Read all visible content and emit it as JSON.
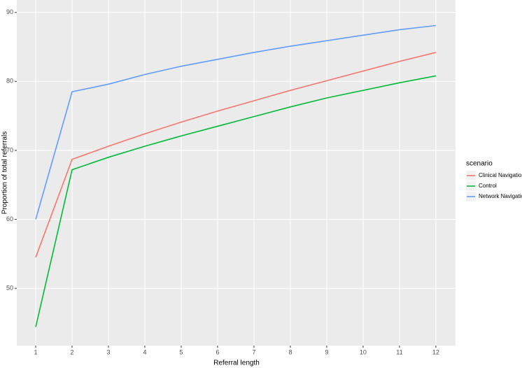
{
  "chart_data": {
    "type": "line",
    "x_label": "Referral length",
    "y_label": "Proportion of total referrals",
    "legend_title": "scenario",
    "x": [
      1,
      2,
      3,
      4,
      5,
      6,
      7,
      8,
      9,
      10,
      11,
      12
    ],
    "series": [
      {
        "name": "Clinical Navigation",
        "color": "#F8766D",
        "values": [
          54.5,
          68.7,
          70.6,
          72.4,
          74.1,
          75.7,
          77.2,
          78.7,
          80.1,
          81.5,
          82.9,
          84.2
        ]
      },
      {
        "name": "Control",
        "color": "#00BA38",
        "values": [
          44.4,
          67.2,
          69.0,
          70.6,
          72.1,
          73.5,
          74.9,
          76.3,
          77.6,
          78.7,
          79.8,
          80.8
        ]
      },
      {
        "name": "Network Navigation",
        "color": "#619CFF",
        "values": [
          60.0,
          78.5,
          79.6,
          81.0,
          82.2,
          83.2,
          84.2,
          85.1,
          85.9,
          86.7,
          87.5,
          88.1
        ]
      }
    ],
    "xlim": [
      0.48,
      12.54
    ],
    "xticks": [
      1,
      2,
      3,
      4,
      5,
      6,
      7,
      8,
      9,
      10,
      11,
      12
    ],
    "ylim": [
      41.7,
      91.8
    ],
    "yticks": [
      50,
      60,
      70,
      80,
      90
    ],
    "grid": true,
    "legend_position": "right"
  }
}
